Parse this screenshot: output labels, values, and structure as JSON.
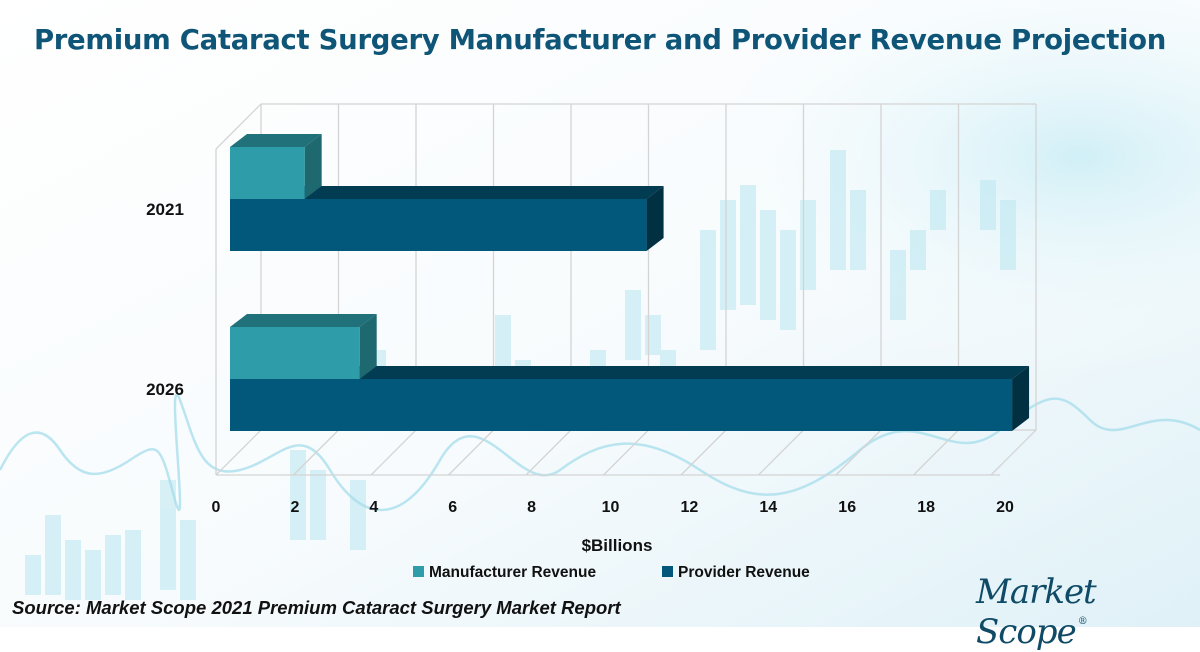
{
  "chart_data": {
    "type": "bar",
    "orientation": "horizontal",
    "style": "3d-clustered",
    "title": "Premium Cataract Surgery Manufacturer and Provider Revenue Projection",
    "categories": [
      "2021",
      "2026"
    ],
    "series": [
      {
        "name": "Manufacturer Revenue",
        "color": "#2e9da9",
        "values": [
          1.9,
          3.3
        ]
      },
      {
        "name": "Provider Revenue",
        "color": "#02587a",
        "values": [
          10.6,
          19.9
        ]
      }
    ],
    "xlabel": "$Billions",
    "ylabel": "",
    "xlim": [
      0,
      20
    ],
    "xticks": [
      "0",
      "2",
      "4",
      "6",
      "8",
      "10",
      "12",
      "14",
      "16",
      "18",
      "20"
    ],
    "grid": true,
    "legend": "bottom"
  },
  "source": "Source: Market Scope 2021 Premium Cataract Surgery Market Report",
  "logo": {
    "text": "Market Scope",
    "mark": "®"
  }
}
